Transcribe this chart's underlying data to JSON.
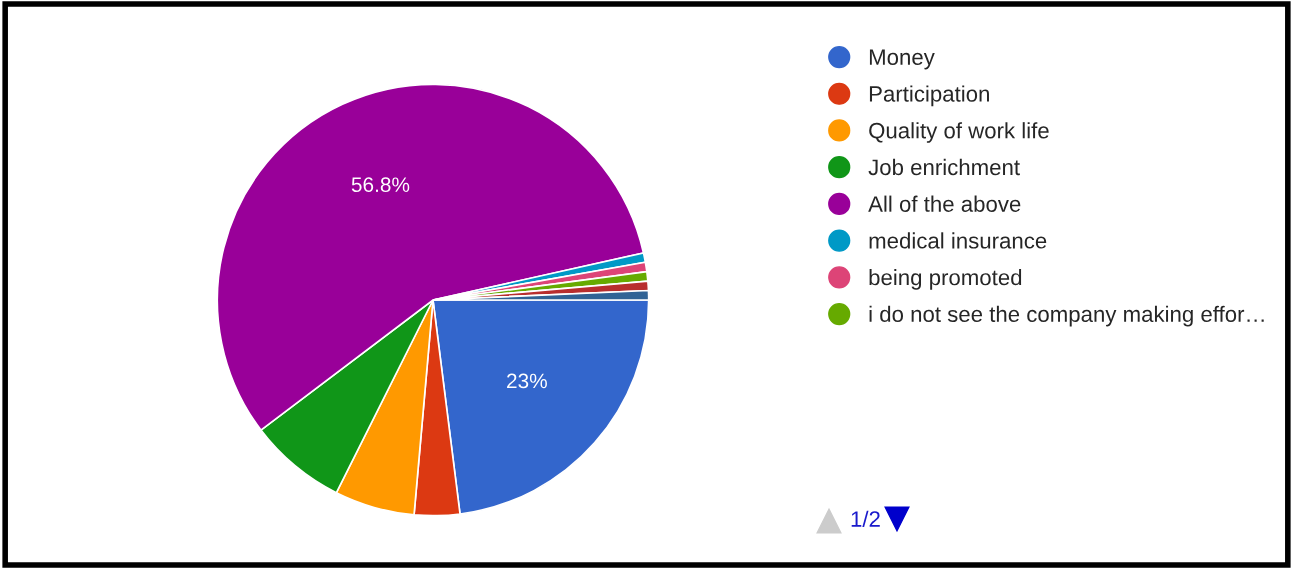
{
  "chart_data": {
    "type": "pie",
    "categories": [
      "Money",
      "Participation",
      "Quality of work life",
      "Job enrichment",
      "All of the above",
      "medical insurance",
      "being promoted",
      "i do not see the company making effor…",
      null,
      null
    ],
    "values": [
      23,
      3.4,
      6,
      7.3,
      56.8,
      0.7,
      0.7,
      0.7,
      0.7,
      0.7
    ],
    "colors": [
      "#3366cc",
      "#dc3912",
      "#ff9900",
      "#109618",
      "#990099",
      "#0099c6",
      "#dd4477",
      "#66aa00",
      "#b82e2e",
      "#316395"
    ],
    "value_labels": [
      "23%",
      null,
      null,
      null,
      "56.8%",
      null,
      null,
      null,
      null,
      null
    ],
    "legend": "right",
    "annotations": [
      "1/2"
    ]
  }
}
